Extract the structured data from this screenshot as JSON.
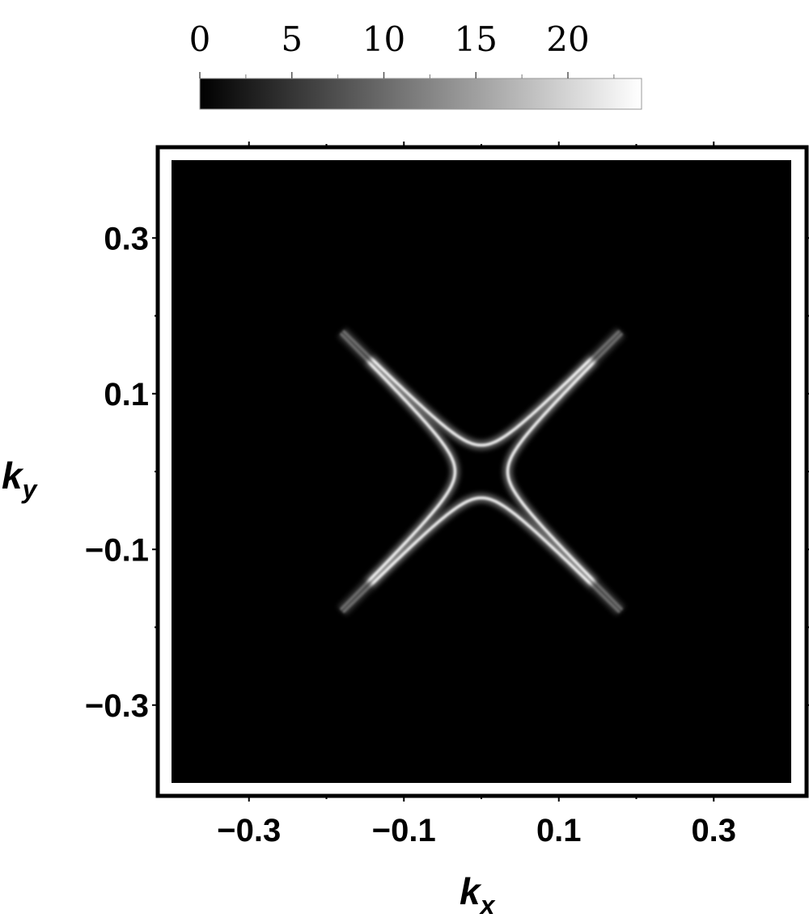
{
  "chart_data": {
    "type": "heatmap",
    "title": "",
    "xlabel": "k",
    "xlabel_subscript": "x",
    "ylabel": "k",
    "ylabel_subscript": "y",
    "xlim": [
      -0.4,
      0.4
    ],
    "ylim": [
      -0.4,
      0.4
    ],
    "x_ticks": [
      -0.3,
      -0.1,
      0.1,
      0.3
    ],
    "x_tick_labels": [
      "−0.3",
      "−0.1",
      "0.1",
      "0.3"
    ],
    "y_ticks": [
      0.3,
      0.1,
      -0.1,
      -0.3
    ],
    "y_tick_labels": [
      "0.3",
      "0.1",
      "−0.1",
      "−0.3"
    ],
    "colorbar": {
      "range": [
        0,
        24
      ],
      "ticks": [
        0,
        5,
        10,
        15,
        20
      ],
      "tick_labels": [
        "0",
        "5",
        "10",
        "15",
        "20"
      ],
      "colormap": "grayscale",
      "low_color": "#000000",
      "high_color": "#ffffff"
    },
    "features": [
      {
        "name": "diagonal-cross",
        "description_values": {
          "center": [
            0.0,
            0.0
          ],
          "arm_extent": 0.17,
          "inner_gap": 0.034,
          "peak_intensity": 24
        }
      }
    ],
    "grid": false,
    "legend": "none"
  }
}
